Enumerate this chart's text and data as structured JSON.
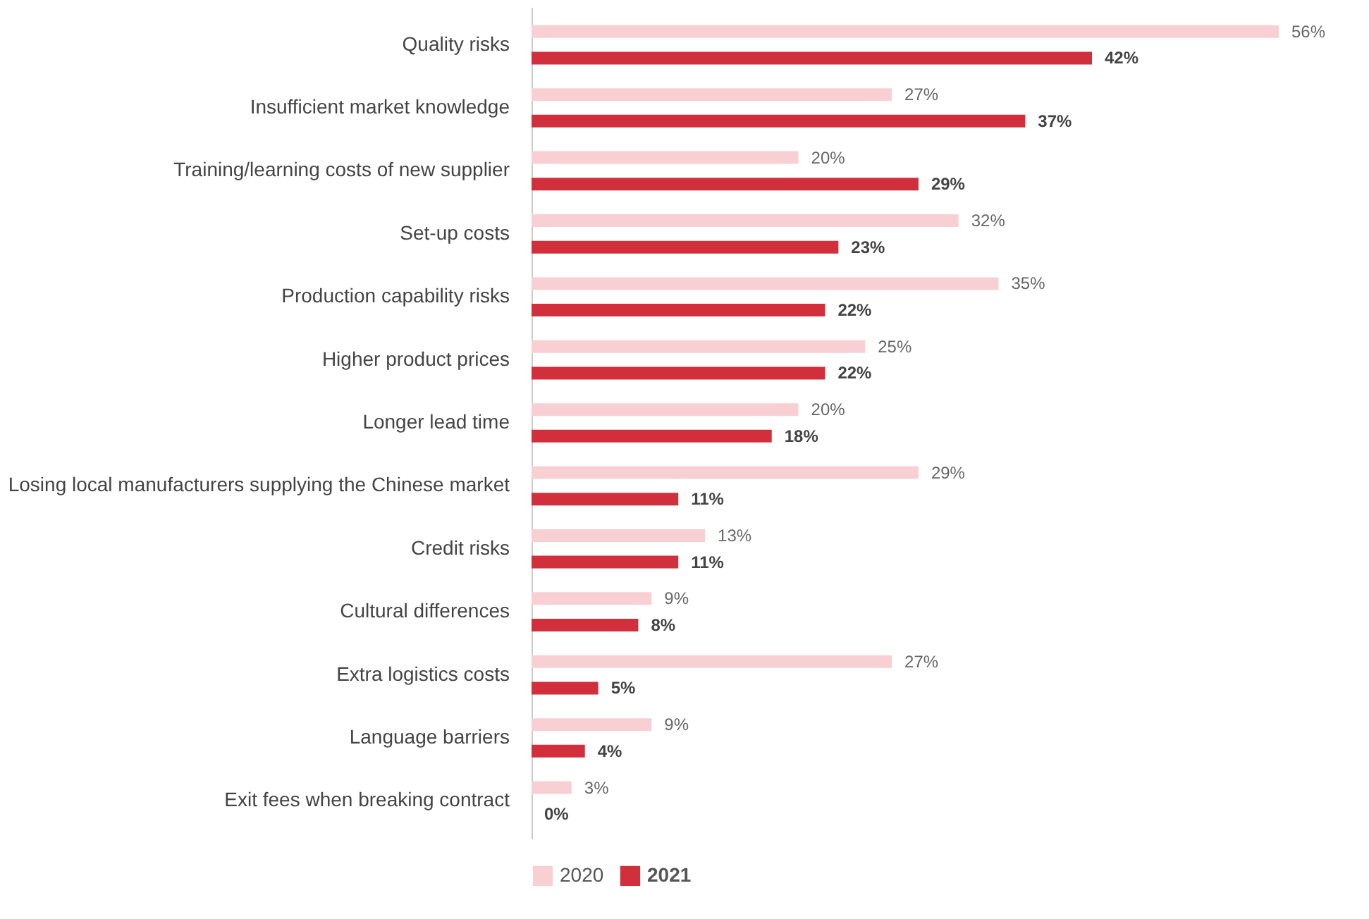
{
  "chart_data": {
    "type": "bar",
    "orientation": "horizontal",
    "legend": "bottom",
    "categories": [
      "Quality risks",
      "Insufficient market knowledge",
      "Training/learning costs of new supplier",
      "Set-up costs",
      "Production capability risks",
      "Higher product prices",
      "Longer lead time",
      "Losing local manufacturers supplying the Chinese market",
      "Credit risks",
      "Cultural differences",
      "Extra logistics costs",
      "Language barriers",
      "Exit fees when breaking contract"
    ],
    "series": [
      {
        "name": "2020",
        "color": "#f8d0d4",
        "values": [
          56,
          27,
          20,
          32,
          35,
          25,
          20,
          29,
          13,
          9,
          27,
          9,
          3
        ],
        "value_labels": [
          "56%",
          "27%",
          "20%",
          "32%",
          "35%",
          "25%",
          "20%",
          "29%",
          "13%",
          "9%",
          "27%",
          "9%",
          "3%"
        ]
      },
      {
        "name": "2021",
        "color": "#d22f3c",
        "values": [
          42,
          37,
          29,
          23,
          22,
          22,
          18,
          11,
          11,
          8,
          5,
          4,
          0
        ],
        "value_labels": [
          "42%",
          "37%",
          "29%",
          "23%",
          "22%",
          "22%",
          "18%",
          "11%",
          "11%",
          "8%",
          "5%",
          "4%",
          "0%"
        ]
      }
    ]
  }
}
